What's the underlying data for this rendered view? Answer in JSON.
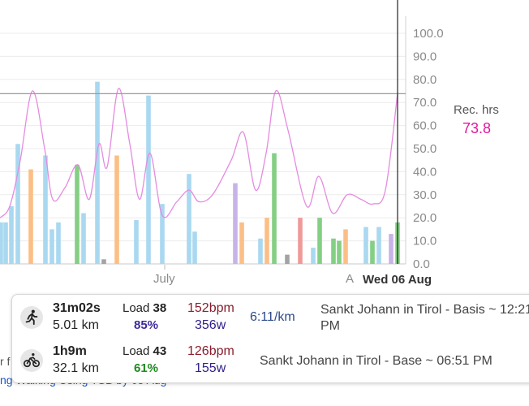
{
  "chart_data": {
    "type": "bar",
    "y_ticks": [
      "100.0",
      "90.0",
      "80.0",
      "70.0",
      "60.0",
      "50.0",
      "40.0",
      "30.0",
      "20.0",
      "10.0",
      "0.0"
    ],
    "ylim": [
      0,
      100
    ],
    "x_labels": {
      "month": "July",
      "truncated_month": "A",
      "selected_date": "Wed 06 Aug"
    },
    "reference_line": 73.8,
    "colors": {
      "blue": "#a9d8f0",
      "orange": "#fbbf86",
      "green": "#84cf84",
      "purple": "#c8b3e8",
      "red": "#ee9a9a",
      "gray": "#a3a3a3",
      "line": "#e58be0"
    },
    "bars": [
      {
        "x": 1,
        "value": 18,
        "color": "blue"
      },
      {
        "x": 7,
        "value": 18,
        "color": "blue"
      },
      {
        "x": 14,
        "value": 25,
        "color": "blue"
      },
      {
        "x": 22,
        "value": 52,
        "color": "blue"
      },
      {
        "x": 38,
        "value": 41,
        "color": "orange"
      },
      {
        "x": 56,
        "value": 47,
        "color": "blue"
      },
      {
        "x": 64,
        "value": 15,
        "color": "blue"
      },
      {
        "x": 72,
        "value": 18,
        "color": "blue"
      },
      {
        "x": 95,
        "value": 43,
        "color": "green"
      },
      {
        "x": 103,
        "value": 22,
        "color": "blue"
      },
      {
        "x": 120,
        "value": 79,
        "color": "blue"
      },
      {
        "x": 128,
        "value": 2,
        "color": "gray"
      },
      {
        "x": 144,
        "value": 47,
        "color": "orange"
      },
      {
        "x": 168,
        "value": 19,
        "color": "blue"
      },
      {
        "x": 183,
        "value": 73,
        "color": "blue"
      },
      {
        "x": 200,
        "value": 26,
        "color": "blue"
      },
      {
        "x": 233,
        "value": 39,
        "color": "blue"
      },
      {
        "x": 240,
        "value": 14,
        "color": "blue"
      },
      {
        "x": 290,
        "value": 35,
        "color": "purple"
      },
      {
        "x": 298,
        "value": 18,
        "color": "orange"
      },
      {
        "x": 321,
        "value": 11,
        "color": "blue"
      },
      {
        "x": 329,
        "value": 20,
        "color": "orange"
      },
      {
        "x": 338,
        "value": 48,
        "color": "green"
      },
      {
        "x": 354,
        "value": 4,
        "color": "gray"
      },
      {
        "x": 370,
        "value": 20,
        "color": "red"
      },
      {
        "x": 386,
        "value": 7,
        "color": "blue"
      },
      {
        "x": 394,
        "value": 20,
        "color": "green"
      },
      {
        "x": 411,
        "value": 11,
        "color": "green"
      },
      {
        "x": 418,
        "value": 10,
        "color": "green"
      },
      {
        "x": 426,
        "value": 15,
        "color": "orange"
      },
      {
        "x": 451,
        "value": 16,
        "color": "blue"
      },
      {
        "x": 459,
        "value": 10,
        "color": "green"
      },
      {
        "x": 467,
        "value": 16,
        "color": "blue"
      },
      {
        "x": 482,
        "value": 13,
        "color": "purple"
      },
      {
        "x": 490,
        "value": 18,
        "color": "green"
      }
    ],
    "line_points": [
      [
        0,
        20
      ],
      [
        12,
        25
      ],
      [
        25,
        45
      ],
      [
        40,
        75
      ],
      [
        55,
        50
      ],
      [
        65,
        28
      ],
      [
        80,
        33
      ],
      [
        96,
        43
      ],
      [
        110,
        28
      ],
      [
        122,
        52
      ],
      [
        132,
        42
      ],
      [
        146,
        76
      ],
      [
        160,
        52
      ],
      [
        172,
        28
      ],
      [
        185,
        48
      ],
      [
        200,
        21
      ],
      [
        218,
        27
      ],
      [
        233,
        32
      ],
      [
        245,
        27
      ],
      [
        262,
        30
      ],
      [
        285,
        45
      ],
      [
        300,
        57
      ],
      [
        315,
        32
      ],
      [
        328,
        48
      ],
      [
        340,
        75
      ],
      [
        355,
        58
      ],
      [
        378,
        25
      ],
      [
        393,
        38
      ],
      [
        410,
        22
      ],
      [
        428,
        30
      ],
      [
        445,
        28
      ],
      [
        460,
        26
      ],
      [
        475,
        32
      ],
      [
        490,
        74
      ]
    ],
    "current_x": 490
  },
  "rec": {
    "label": "Rec. hrs",
    "value": "73.8"
  },
  "background": {
    "left_text": "r f",
    "link_text": "ng Walking Using TSB by 05 Aug"
  },
  "popup": {
    "rows": [
      {
        "icon": "running-icon",
        "duration": "31m02s",
        "distance": "5.01 km",
        "load_label": "Load",
        "load_value": "38",
        "percent": "85%",
        "percent_color": "#3b2a9c",
        "bpm": "152bpm",
        "watts": "356w",
        "pace": "6:11/km",
        "place": "Sankt Johann in Tirol - Basis ~ 12:21 PM"
      },
      {
        "icon": "cycling-icon",
        "duration": "1h9m",
        "distance": "32.1 km",
        "load_label": "Load",
        "load_value": "43",
        "percent": "61%",
        "percent_color": "#1e8a1e",
        "bpm": "126bpm",
        "watts": "155w",
        "pace": "",
        "place": "Sankt Johann in Tirol - Base ~ 06:51 PM"
      }
    ]
  }
}
